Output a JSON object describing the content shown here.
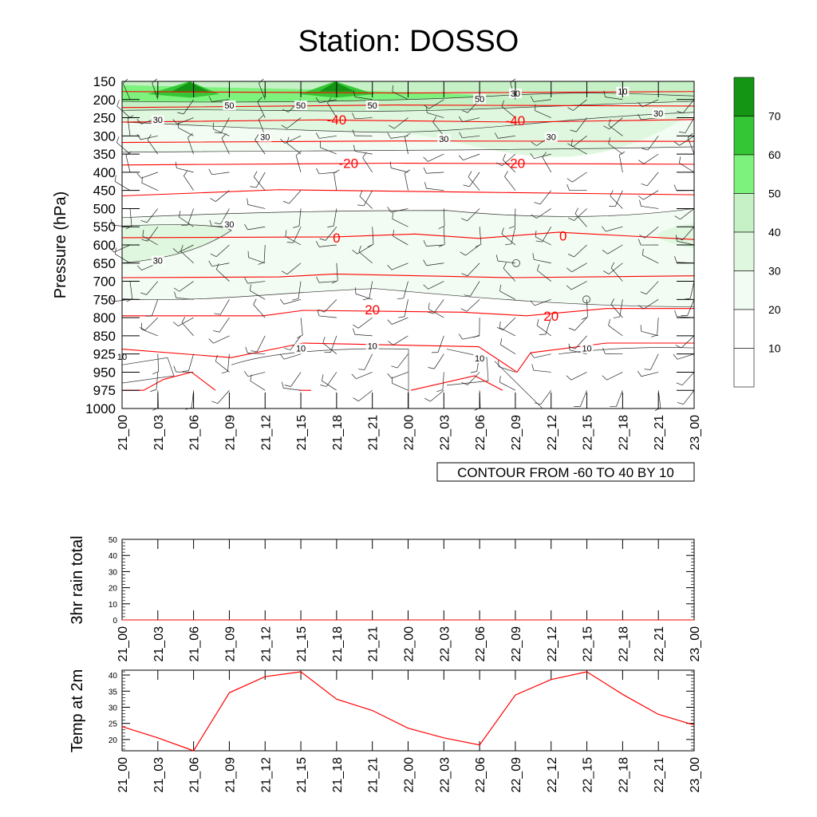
{
  "title": "Station: DOSSO",
  "colors": {
    "isotherm": "#ff0000",
    "humidity_line": "#333333",
    "wind_barb": "#222222",
    "fill_levels": [
      "#ffffff",
      "#ffffff",
      "#f2fcf2",
      "#dff7df",
      "#c6f0c6",
      "#7df27d",
      "#34c634",
      "#149614"
    ]
  },
  "chart_data": [
    {
      "type": "heatmap",
      "name": "sounding-cross-section",
      "ylabel": "Pressure (hPa)",
      "y_tick_labels": [
        "150",
        "200",
        "250",
        "300",
        "350",
        "400",
        "450",
        "500",
        "550",
        "600",
        "650",
        "700",
        "750",
        "800",
        "850",
        "925",
        "950",
        "975",
        "1000"
      ],
      "x_tick_labels": [
        "21_00",
        "21_03",
        "21_06",
        "21_09",
        "21_12",
        "21_15",
        "21_18",
        "21_21",
        "22_00",
        "22_03",
        "22_06",
        "22_09",
        "22_12",
        "22_15",
        "22_18",
        "22_21",
        "23_00"
      ],
      "footer_label": "CONTOUR FROM -60 TO 40 BY 10",
      "colorbar_labels": [
        "10",
        "20",
        "30",
        "40",
        "50",
        "60",
        "70"
      ],
      "isotherm_labels": [
        {
          "text": "-40",
          "x": "21_18",
          "p": 255
        },
        {
          "text": "-40",
          "x": "22_09",
          "p": 258
        },
        {
          "text": "-20",
          "x": "21_19",
          "p": 375
        },
        {
          "text": "-20",
          "x": "22_09",
          "p": 375
        },
        {
          "text": "0",
          "x": "21_18",
          "p": 580
        },
        {
          "text": "0",
          "x": "22_13",
          "p": 575
        },
        {
          "text": "20",
          "x": "21_21",
          "p": 778
        },
        {
          "text": "20",
          "x": "22_12",
          "p": 795
        }
      ],
      "humidity_labels": [
        {
          "text": "50",
          "x": "21_09",
          "p": 218
        },
        {
          "text": "50",
          "x": "21_15",
          "p": 218
        },
        {
          "text": "50",
          "x": "21_21",
          "p": 218
        },
        {
          "text": "50",
          "x": "22_06",
          "p": 200
        },
        {
          "text": "30",
          "x": "22_09",
          "p": 185
        },
        {
          "text": "10",
          "x": "22_18",
          "p": 180
        },
        {
          "text": "30",
          "x": "22_21",
          "p": 240
        },
        {
          "text": "30",
          "x": "21_03",
          "p": 258
        },
        {
          "text": "30",
          "x": "21_12",
          "p": 305
        },
        {
          "text": "30",
          "x": "22_03",
          "p": 310
        },
        {
          "text": "30",
          "x": "22_12",
          "p": 305
        },
        {
          "text": "30",
          "x": "21_09",
          "p": 545
        },
        {
          "text": "30",
          "x": "21_03",
          "p": 645
        },
        {
          "text": "10",
          "x": "21_00",
          "p": 930
        },
        {
          "text": "10",
          "x": "21_15",
          "p": 905
        },
        {
          "text": "10",
          "x": "21_21",
          "p": 895
        },
        {
          "text": "10",
          "x": "22_06",
          "p": 932
        },
        {
          "text": "10",
          "x": "22_15",
          "p": 905
        }
      ]
    },
    {
      "type": "line",
      "name": "rain",
      "ylabel": "3hr rain total",
      "categories": [
        "21_00",
        "21_03",
        "21_06",
        "21_09",
        "21_12",
        "21_15",
        "21_18",
        "21_21",
        "22_00",
        "22_03",
        "22_06",
        "22_09",
        "22_12",
        "22_15",
        "22_18",
        "22_21",
        "23_00"
      ],
      "ylim": [
        0,
        50
      ],
      "y_tick_labels": [
        "0",
        "10",
        "20",
        "30",
        "40",
        "50"
      ],
      "series": [
        {
          "values": [
            0,
            0,
            0,
            0,
            0,
            0,
            0,
            0,
            0,
            0,
            0,
            0,
            0,
            0,
            0,
            0,
            0
          ]
        }
      ]
    },
    {
      "type": "line",
      "name": "temperature",
      "ylabel": "Temp at 2m",
      "categories": [
        "21_00",
        "21_03",
        "21_06",
        "21_09",
        "21_12",
        "21_15",
        "21_18",
        "21_21",
        "22_00",
        "22_03",
        "22_06",
        "22_09",
        "22_12",
        "22_15",
        "22_18",
        "22_21",
        "23_00"
      ],
      "ylim": [
        16.5,
        41.5
      ],
      "y_tick_labels": [
        "20",
        "25",
        "30",
        "35",
        "40"
      ],
      "series": [
        {
          "values": [
            24,
            20.5,
            16.5,
            34.5,
            39.5,
            41,
            32.5,
            29,
            23.5,
            20.5,
            18.3,
            33.8,
            38.6,
            41,
            34,
            27.8,
            24.5
          ]
        }
      ]
    }
  ]
}
